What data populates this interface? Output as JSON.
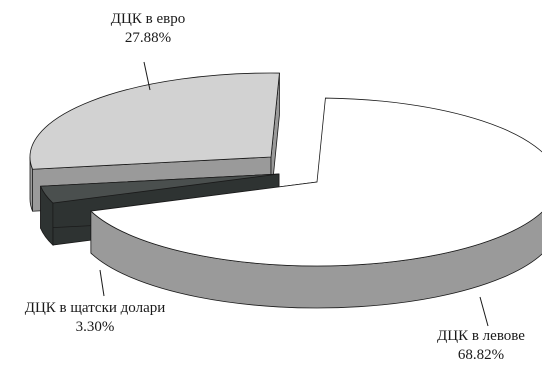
{
  "chart_data": {
    "type": "pie",
    "style": "3d-exploded",
    "slices": [
      {
        "label": "ДЦК в левове",
        "value": 68.82,
        "value_text": "68.82%",
        "top_color": "#ffffff",
        "side_color": "#9a9a9a"
      },
      {
        "label": "ДЦК в щатски долари",
        "value": 3.3,
        "value_text": "3.30%",
        "top_color": "#4a4f4e",
        "side_color": "#2e3332"
      },
      {
        "label": "ДЦК в евро",
        "value": 27.88,
        "value_text": "27.88%",
        "top_color": "#d2d2d2",
        "side_color": "#9a9a9a"
      }
    ],
    "legend": "none"
  }
}
